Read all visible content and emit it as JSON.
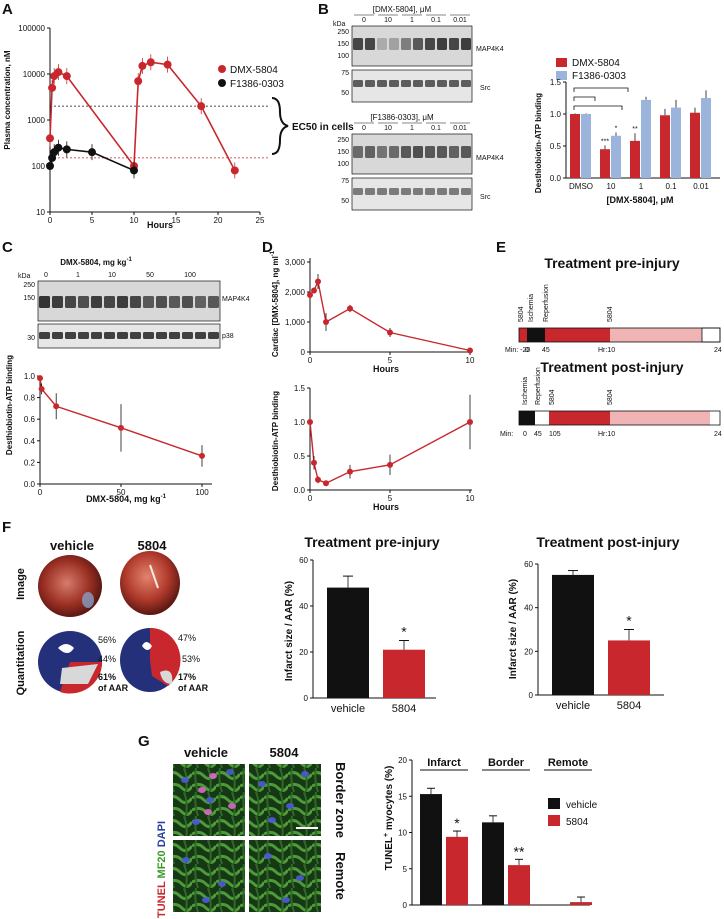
{
  "panel_letters": [
    "A",
    "B",
    "C",
    "D",
    "E",
    "F",
    "G"
  ],
  "colors": {
    "red": "#c8282d",
    "black": "#111111",
    "blue": "#9bb4dc",
    "pink": "#f0b4b4",
    "navy": "#1e2a78",
    "green": "#5aa03c"
  },
  "panel_a": {
    "ylabel": "Plasma concentration, nM",
    "xlabel": "Hours",
    "legend": [
      "DMX-5804",
      "F1386-0303"
    ],
    "annotation": "EC50 in cells",
    "yticks": [
      "100000",
      "10000",
      "1000",
      "100",
      "10"
    ],
    "xticks": [
      "0",
      "5",
      "10",
      "15",
      "20",
      "25"
    ]
  },
  "panel_b": {
    "kda": "kDa",
    "top_title": "[DMX-5804], μM",
    "bottom_title": "[F1386-0303], μM",
    "doses": [
      "0",
      "10",
      "1",
      "0.1",
      "0.01"
    ],
    "mw_top": [
      "250",
      "150",
      "100"
    ],
    "mw_src": [
      "75",
      "50"
    ],
    "mw_bottom": [
      "250",
      "150",
      "100"
    ],
    "mw_src2": [
      "75",
      "50"
    ],
    "band_map": "MAP4K4",
    "band_src": "Src",
    "ylabel": "Desthiobiotin-ATP binding",
    "xlabel": "[DMX-5804], μM",
    "legend": [
      "DMX-5804",
      "F1386-0303"
    ],
    "yticks": [
      "1.5",
      "1.0",
      "0.5",
      "0.0"
    ],
    "categories": [
      "DMSO",
      "10",
      "1",
      "0.1",
      "0.01"
    ],
    "sig": [
      "***",
      "*",
      "**"
    ]
  },
  "panel_c": {
    "title": "DMX-5804, mg kg",
    "title_sup": "-1",
    "kda": "kDa",
    "doses": [
      "0",
      "1",
      "10",
      "50",
      "100"
    ],
    "mw_top": [
      "250",
      "150"
    ],
    "mw_bottom": [
      "30"
    ],
    "band_map": "MAP4K4",
    "band_p38": "p38",
    "ylabel": "Desthiobiotin-ATP binding",
    "xlabel": "DMX-5804, mg kg",
    "xlabel_sup": "-1",
    "yticks": [
      "1.0",
      "0.8",
      "0.6",
      "0.4",
      "0.2",
      "0.0"
    ],
    "xticks": [
      "0",
      "50",
      "100"
    ]
  },
  "panel_d": {
    "ylabel_top": "Cardiac [DMX-5804], ng ml",
    "ylabel_top_sup": "-1",
    "yticks_top": [
      "3,000",
      "2,000",
      "1,000",
      "0"
    ],
    "xlabel": "Hours",
    "xticks": [
      "0",
      "5",
      "10"
    ],
    "ylabel_bottom": "Desthiobiotin-ATP binding",
    "yticks_bottom": [
      "1.5",
      "1.0",
      "0.5",
      "0.0"
    ]
  },
  "panel_e": {
    "title_pre": "Treatment pre-injury",
    "title_post": "Treatment post-injury",
    "pre_labels": [
      "5804",
      "Ischemia",
      "Reperfusion",
      "5804"
    ],
    "pre_ticks": [
      "Min: -20",
      "0",
      "45",
      "Hr:10",
      "24"
    ],
    "post_labels": [
      "Ischemia",
      "Reperfusion",
      "5804",
      "5804"
    ],
    "post_ticks": [
      "Min:",
      "0",
      "45",
      "105",
      "Hr:10",
      "24"
    ]
  },
  "panel_f": {
    "col_labels": [
      "vehicle",
      "5804"
    ],
    "row_labels": [
      "Image",
      "Quantitation"
    ],
    "vehicle_pcts": [
      "56%",
      "44%",
      "61%",
      "of AAR"
    ],
    "drug_pcts": [
      "47%",
      "53%",
      "17%",
      "of AAR"
    ],
    "chart_pre_title": "Treatment pre-injury",
    "chart_post_title": "Treatment post-injury",
    "ylabel": "Infarct size / AAR (%)",
    "pre_yticks": [
      "60",
      "40",
      "20",
      "0"
    ],
    "post_yticks": [
      "60",
      "40",
      "20",
      "0"
    ],
    "categories": [
      "vehicle",
      "5804"
    ],
    "sig": "*"
  },
  "panel_g": {
    "col_labels": [
      "vehicle",
      "5804"
    ],
    "row_labels": [
      "Border zone",
      "Remote"
    ],
    "stain_tunel": "TUNEL",
    "stain_mf20": "MF20",
    "stain_dapi": "DAPI",
    "ylabel": "TUNEL",
    "ylabel_sup": "+",
    "ylabel_rest": " myocytes (%)",
    "yticks": [
      "20",
      "15",
      "10",
      "5",
      "0"
    ],
    "groups": [
      "Infarct",
      "Border",
      "Remote"
    ],
    "legend": [
      "vehicle",
      "5804"
    ],
    "sig": [
      "*",
      "**"
    ]
  },
  "chart_data": [
    {
      "type": "line",
      "panel": "A",
      "xlabel": "Hours",
      "ylabel": "Plasma concentration, nM",
      "yscale": "log",
      "xlim": [
        0,
        25
      ],
      "ylim": [
        10,
        100000
      ],
      "series": [
        {
          "name": "DMX-5804",
          "x": [
            0,
            0.25,
            0.5,
            1,
            2,
            10,
            10.5,
            11,
            12,
            14,
            18,
            22
          ],
          "y": [
            400,
            5000,
            9000,
            11000,
            9000,
            100,
            7000,
            15000,
            18000,
            16000,
            2000,
            80
          ]
        },
        {
          "name": "F1386-0303",
          "x": [
            0,
            0.25,
            0.5,
            1,
            2,
            5,
            10
          ],
          "y": [
            100,
            150,
            200,
            250,
            230,
            200,
            80
          ]
        }
      ],
      "reference_lines": [
        2000,
        150
      ]
    },
    {
      "type": "bar",
      "panel": "B",
      "xlabel": "[DMX-5804], μM",
      "ylabel": "Desthiobiotin-ATP binding",
      "ylim": [
        0,
        1.5
      ],
      "categories": [
        "DMSO",
        "10",
        "1",
        "0.1",
        "0.01"
      ],
      "series": [
        {
          "name": "DMX-5804",
          "values": [
            1.0,
            0.45,
            0.58,
            0.98,
            1.02
          ],
          "errors": [
            0.01,
            0.06,
            0.12,
            0.1,
            0.08
          ]
        },
        {
          "name": "F1386-0303",
          "values": [
            1.0,
            0.66,
            1.22,
            1.1,
            1.25
          ],
          "errors": [
            0.01,
            0.05,
            0.05,
            0.12,
            0.12
          ]
        }
      ]
    },
    {
      "type": "line",
      "panel": "C",
      "xlabel": "DMX-5804, mg kg-1",
      "ylabel": "Desthiobiotin-ATP binding",
      "xlim": [
        0,
        100
      ],
      "ylim": [
        0,
        1.0
      ],
      "x": [
        0,
        1,
        10,
        50,
        100
      ],
      "y": [
        0.98,
        0.88,
        0.72,
        0.52,
        0.26
      ],
      "errors": [
        0.02,
        0.05,
        0.12,
        0.22,
        0.1
      ]
    },
    {
      "type": "line",
      "panel": "D-top",
      "xlabel": "Hours",
      "ylabel": "Cardiac [DMX-5804], ng ml-1",
      "xlim": [
        0,
        10
      ],
      "ylim": [
        0,
        3000
      ],
      "x": [
        0,
        0.25,
        0.5,
        1,
        2.5,
        5,
        10
      ],
      "y": [
        1900,
        2050,
        2350,
        1000,
        1450,
        650,
        50
      ],
      "errors": [
        100,
        100,
        250,
        300,
        120,
        150,
        20
      ]
    },
    {
      "type": "line",
      "panel": "D-bottom",
      "xlabel": "Hours",
      "ylabel": "Desthiobiotin-ATP binding",
      "xlim": [
        0,
        10
      ],
      "ylim": [
        0,
        1.5
      ],
      "x": [
        0,
        0.25,
        0.5,
        1,
        2.5,
        5,
        10
      ],
      "y": [
        1.0,
        0.4,
        0.15,
        0.1,
        0.27,
        0.37,
        1.0
      ],
      "errors": [
        0.02,
        0.1,
        0.05,
        0.04,
        0.1,
        0.15,
        0.4
      ]
    },
    {
      "type": "bar",
      "panel": "F-pre",
      "title": "Treatment pre-injury",
      "ylabel": "Infarct size / AAR (%)",
      "ylim": [
        0,
        60
      ],
      "categories": [
        "vehicle",
        "5804"
      ],
      "values": [
        48,
        21
      ],
      "errors": [
        5,
        4
      ]
    },
    {
      "type": "bar",
      "panel": "F-post",
      "title": "Treatment post-injury",
      "ylabel": "Infarct size / AAR (%)",
      "ylim": [
        0,
        60
      ],
      "categories": [
        "vehicle",
        "5804"
      ],
      "values": [
        55,
        25
      ],
      "errors": [
        2,
        5
      ]
    },
    {
      "type": "bar",
      "panel": "G",
      "ylabel": "TUNEL+ myocytes (%)",
      "ylim": [
        0,
        20
      ],
      "categories": [
        "Infarct",
        "Border",
        "Remote"
      ],
      "series": [
        {
          "name": "vehicle",
          "values": [
            15.3,
            11.4,
            0
          ],
          "errors": [
            0.8,
            0.9,
            0
          ]
        },
        {
          "name": "5804",
          "values": [
            9.4,
            5.5,
            0.4
          ],
          "errors": [
            0.8,
            0.8,
            0.7
          ]
        }
      ]
    }
  ]
}
